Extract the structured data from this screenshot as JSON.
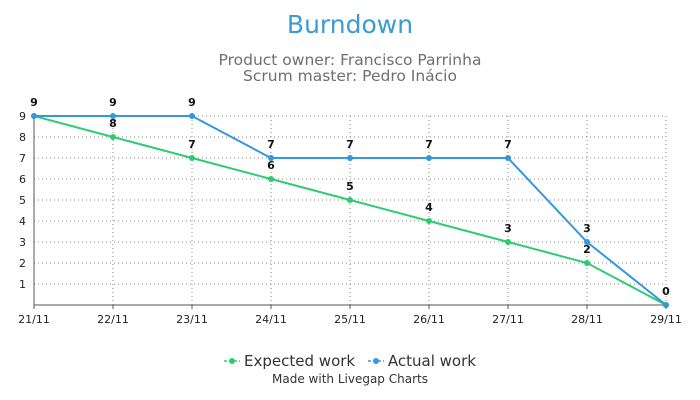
{
  "chart_data": {
    "type": "line",
    "title": "Burndown",
    "subtitle_lines": [
      "Product owner: Francisco Parrinha",
      "Scrum master: Pedro Inácio"
    ],
    "categories": [
      "21/11",
      "22/11",
      "23/11",
      "24/11",
      "25/11",
      "26/11",
      "27/11",
      "28/11",
      "29/11"
    ],
    "series": [
      {
        "name": "Expected work",
        "color": "#2ecc71",
        "values": [
          9,
          8,
          7,
          6,
          5,
          4,
          3,
          2,
          0
        ]
      },
      {
        "name": "Actual work",
        "color": "#3498db",
        "values": [
          9,
          9,
          9,
          7,
          7,
          7,
          7,
          3,
          0
        ]
      }
    ],
    "ylim": [
      0,
      9
    ],
    "yticks": [
      1,
      2,
      3,
      4,
      5,
      6,
      7,
      8,
      9
    ],
    "grid": true,
    "legend_position": "bottom"
  },
  "footer": "Made with Livegap Charts"
}
